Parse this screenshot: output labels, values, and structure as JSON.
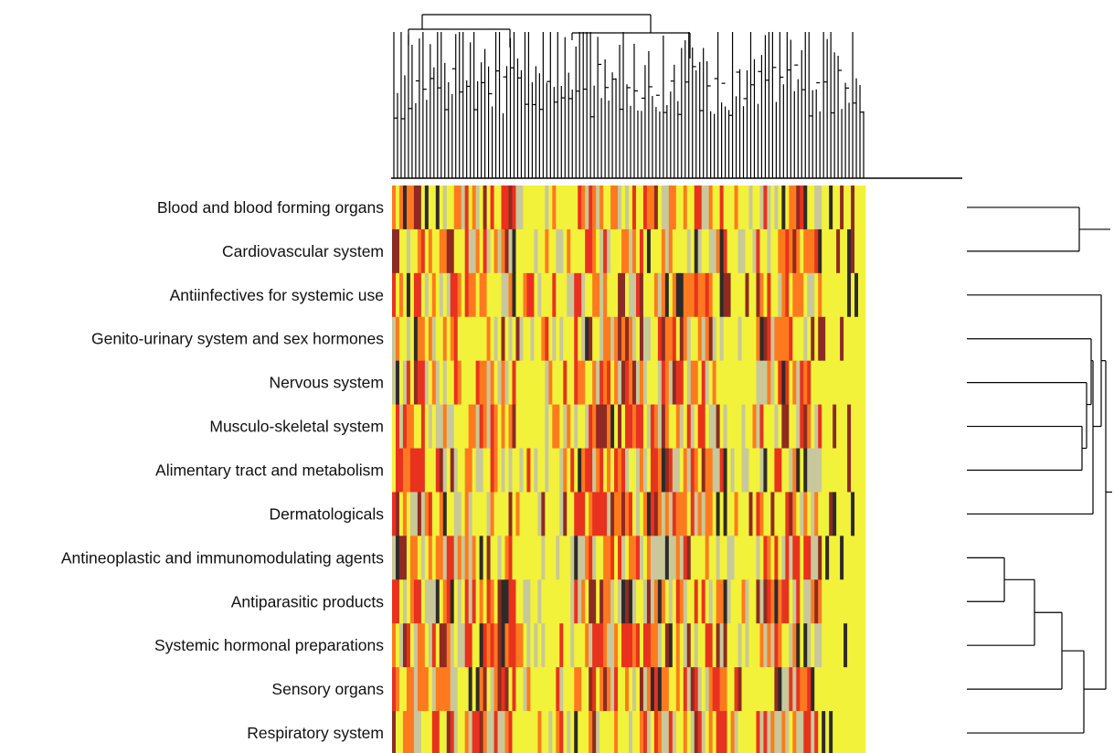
{
  "chart_data": {
    "type": "heatmap",
    "title": "",
    "xlabel": "",
    "ylabel": "",
    "rows": [
      "Blood and blood forming organs",
      "Cardiovascular system",
      "Antiinfectives for systemic use",
      "Genito-urinary system and sex hormones",
      "Nervous system",
      "Musculo-skeletal system",
      "Alimentary tract and metabolism",
      "Dermatologicals",
      "Antineoplastic and immunomodulating agents",
      "Antiparasitic products",
      "Systemic hormonal preparations",
      "Sensory organs",
      "Respiratory system"
    ],
    "column_count": 130,
    "colormap": [
      "#f2f23a",
      "#c8c89a",
      "#ff7a1e",
      "#e8321e",
      "#8e2a22",
      "#2e2a2a"
    ],
    "grid": false,
    "legend": "none",
    "row_dendrogram": "right",
    "column_dendrogram": "top"
  }
}
